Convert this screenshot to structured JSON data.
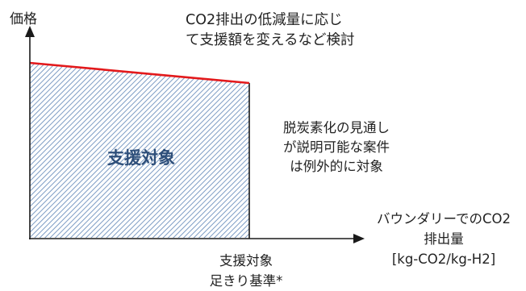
{
  "colors": {
    "price_line": "#e3191b",
    "region_base": "#ffffff",
    "region_hatch": "#7d9cc4",
    "region_label": "#2e4f7a",
    "axis": "#1a1a1a",
    "text": "#222222"
  },
  "axes": {
    "y_label": "価格",
    "x_label_lines": [
      "バウンダリーでのCO2",
      "排出量",
      "[kg-CO2/kg-H2]"
    ]
  },
  "annotations": {
    "top_lines": [
      "CO2排出の低減量に応じ",
      "て支援額を変えるなど検討"
    ],
    "side_lines": [
      "脱炭素化の見通し",
      "が説明可能な案件",
      "は例外的に対象"
    ],
    "threshold_lines": [
      "支援対象",
      "足きり基準*"
    ]
  },
  "region": {
    "label": "支援対象",
    "fill_pattern": "diagonal-hatch"
  }
}
